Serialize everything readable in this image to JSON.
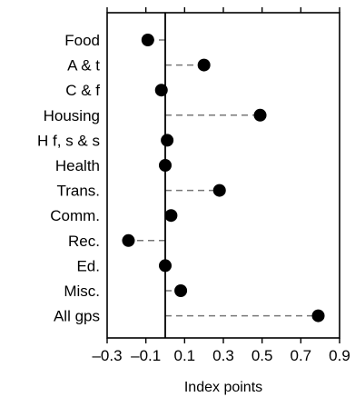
{
  "chart_data": {
    "type": "scatter",
    "style": "dot plot with dashed leader lines from zero",
    "categories": [
      "Food",
      "A & t",
      "C & f",
      "Housing",
      "H f, s & s",
      "Health",
      "Trans.",
      "Comm.",
      "Rec.",
      "Ed.",
      "Misc.",
      "All gps"
    ],
    "values": [
      -0.09,
      0.2,
      -0.02,
      0.49,
      0.01,
      0.0,
      0.28,
      0.03,
      -0.19,
      0.0,
      0.08,
      0.79
    ],
    "xlabel": "Index points",
    "ylabel": "",
    "xlim": [
      -0.3,
      0.9
    ],
    "xticks": [
      -0.3,
      -0.1,
      0.1,
      0.3,
      0.5,
      0.7,
      0.9
    ],
    "xtick_labels": [
      "–0.3",
      "–0.1",
      "0.1",
      "0.3",
      "0.5",
      "0.7",
      "0.9"
    ],
    "reference_line": 0,
    "grid": false,
    "colors": {
      "marker": "#000000",
      "leader": "#777777",
      "axis": "#000000"
    }
  }
}
